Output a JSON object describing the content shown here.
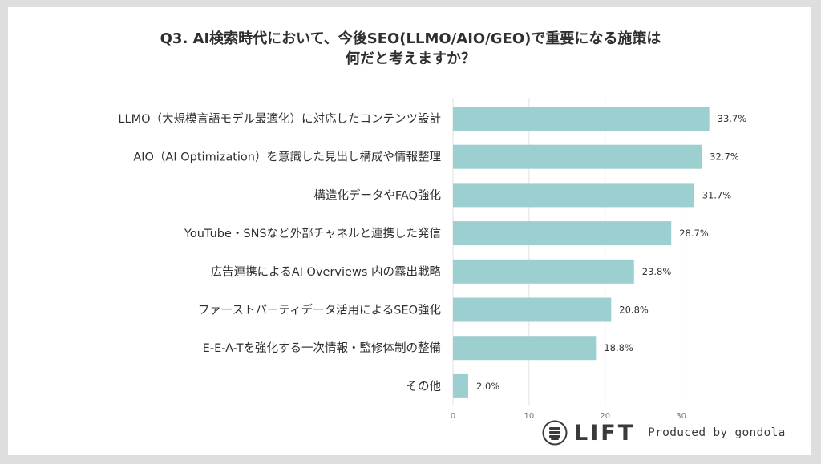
{
  "chart_data": {
    "type": "bar",
    "orientation": "horizontal",
    "title": "Q3. AI検索時代において、今後SEO(LLMO/AIO/GEO)で重要になる施策は何だと考えますか？",
    "title_lines": [
      "Q3. AI検索時代において、今後SEO(LLMO/AIO/GEO)で重要になる施策は",
      "何だと考えますか？"
    ],
    "categories": [
      "LLMO（大規模言語モデル最適化）に対応したコンテンツ設計",
      "AIO（AI Optimization）を意識した見出し構成や情報整理",
      "構造化データやFAQ強化",
      "YouTube・SNSなど外部チャネルと連携した発信",
      "広告連携によるAI Overviews 内の露出戦略",
      "ファーストパーティデータ活用によるSEO強化",
      "E-E-A-Tを強化する一次情報・監修体制の整備",
      "その他"
    ],
    "values": [
      33.7,
      32.7,
      31.7,
      28.7,
      23.8,
      20.8,
      18.8,
      2.0
    ],
    "value_labels": [
      "33.7%",
      "32.7%",
      "31.7%",
      "28.7%",
      "23.8%",
      "20.8%",
      "18.8%",
      "2.0%"
    ],
    "xlim": [
      0,
      35
    ],
    "xticks": [
      0,
      10,
      20,
      30
    ],
    "xtick_labels": [
      "0",
      "10",
      "20",
      "30"
    ],
    "xlabel": "",
    "ylabel": "",
    "grid": true,
    "legend": "none",
    "bar_color": "#9ccfcf"
  },
  "brand": {
    "logo_icon": "lift-logo-icon",
    "name": "LIFT",
    "credit": "Produced by gondola"
  }
}
